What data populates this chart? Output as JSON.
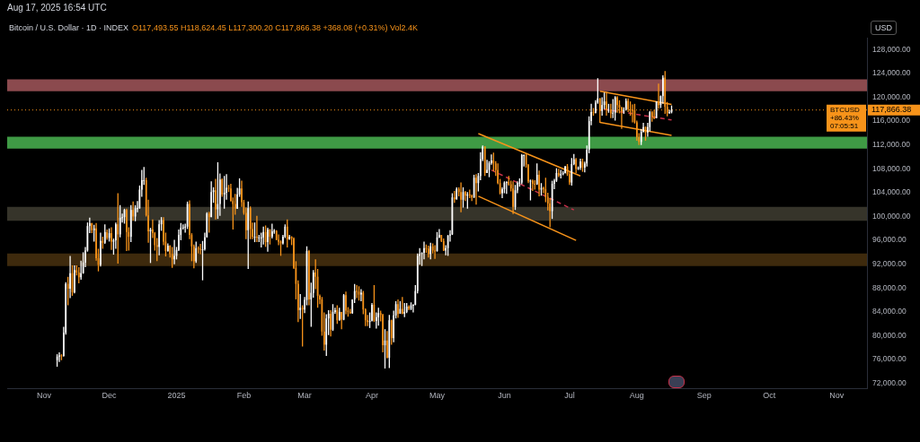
{
  "chart_data": {
    "type": "candlestick",
    "title": "Bitcoin / U.S. Dollar · 1D · INDEX",
    "subtitle": "O117,493.55 H118,624.45 L117,300.20 C117,866.38 +368.08 (+0.31%) Vol2.4K",
    "annotations": [
      "Aug 17, 2025 16:54 UTC",
      "BTCUSD",
      "+86.43%",
      "07:05:51",
      "USD"
    ],
    "xlim": [
      "2024-10-15",
      "2025-11-15"
    ],
    "xticks": [
      {
        "value": "2024-11-01",
        "label": "Nov"
      },
      {
        "value": "2024-12-01",
        "label": "Dec"
      },
      {
        "value": "2025-01-01",
        "label": "2025"
      },
      {
        "value": "2025-02-01",
        "label": "Feb"
      },
      {
        "value": "2025-03-01",
        "label": "Mar"
      },
      {
        "value": "2025-04-01",
        "label": "Apr"
      },
      {
        "value": "2025-05-01",
        "label": "May"
      },
      {
        "value": "2025-06-01",
        "label": "Jun"
      },
      {
        "value": "2025-07-01",
        "label": "Jul"
      },
      {
        "value": "2025-08-01",
        "label": "Aug"
      },
      {
        "value": "2025-09-01",
        "label": "Sep"
      },
      {
        "value": "2025-10-01",
        "label": "Oct"
      },
      {
        "value": "2025-11-01",
        "label": "Nov"
      }
    ],
    "ylim": [
      71200,
      130000
    ],
    "yticks": [
      {
        "value": 72000,
        "label": "72,000.00"
      },
      {
        "value": 76000,
        "label": "76,000.00"
      },
      {
        "value": 80000,
        "label": "80,000.00"
      },
      {
        "value": 84000,
        "label": "84,000.00"
      },
      {
        "value": 88000,
        "label": "88,000.00"
      },
      {
        "value": 92000,
        "label": "92,000.00"
      },
      {
        "value": 96000,
        "label": "96,000.00"
      },
      {
        "value": 100000,
        "label": "100,000.00"
      },
      {
        "value": 104000,
        "label": "104,000.00"
      },
      {
        "value": 108000,
        "label": "108,000.00"
      },
      {
        "value": 112000,
        "label": "112,000.00"
      },
      {
        "value": 116000,
        "label": "116,000.00"
      },
      {
        "value": 120000,
        "label": "120,000.00"
      },
      {
        "value": 124000,
        "label": "124,000.00"
      },
      {
        "value": 128000,
        "label": "128,000.00"
      }
    ],
    "bands": [
      {
        "axis": "y",
        "from": 121000,
        "to": 123000,
        "color": "#8b4a4e"
      },
      {
        "axis": "y",
        "from": 111400,
        "to": 113400,
        "color": "#3f9a45"
      },
      {
        "axis": "y",
        "from": 99300,
        "to": 101600,
        "color": "#36342a"
      },
      {
        "axis": "y",
        "from": 91700,
        "to": 93800,
        "color": "#3e2a0d"
      }
    ],
    "ref_lines": [
      {
        "axis": "y",
        "value": 117866.38,
        "label": "117,866.38",
        "color": "#f7931a",
        "line_style": "dotted"
      }
    ],
    "series": [
      {
        "type": "line",
        "x": [
          "2025-05-20",
          "2025-07-06"
        ],
        "values": [
          113900,
          106800
        ],
        "color": "#f7931a"
      },
      {
        "type": "line",
        "x": [
          "2025-05-20",
          "2025-07-04"
        ],
        "values": [
          103400,
          96000
        ],
        "color": "#f7931a"
      },
      {
        "type": "line",
        "x": [
          "2025-05-26",
          "2025-07-03"
        ],
        "values": [
          107800,
          101100
        ],
        "color": "#c8304a",
        "line_style": "dashed"
      },
      {
        "type": "line",
        "x": [
          "2025-07-15",
          "2025-08-17"
        ],
        "values": [
          121000,
          118800
        ],
        "color": "#f7931a"
      },
      {
        "type": "line",
        "x": [
          "2025-07-15",
          "2025-08-17"
        ],
        "values": [
          115800,
          113600
        ],
        "color": "#f7931a"
      },
      {
        "type": "line",
        "x": [
          "2025-07-17",
          "2025-08-17"
        ],
        "values": [
          118000,
          116200
        ],
        "color": "#c8304a",
        "line_style": "dashed"
      }
    ],
    "x": [
      "2024-11-07",
      "2024-11-08",
      "2024-11-09",
      "2024-11-10",
      "2024-11-11",
      "2024-11-12",
      "2024-11-13",
      "2024-11-14",
      "2024-11-15",
      "2024-11-16",
      "2024-11-17",
      "2024-11-18",
      "2024-11-19",
      "2024-11-20",
      "2024-11-21",
      "2024-11-22",
      "2024-11-23",
      "2024-11-24",
      "2024-11-25",
      "2024-11-26",
      "2024-11-27",
      "2024-11-28",
      "2024-11-29",
      "2024-11-30",
      "2024-12-01",
      "2024-12-02",
      "2024-12-03",
      "2024-12-04",
      "2024-12-05",
      "2024-12-06",
      "2024-12-07",
      "2024-12-08",
      "2024-12-09",
      "2024-12-10",
      "2024-12-11",
      "2024-12-12",
      "2024-12-13",
      "2024-12-14",
      "2024-12-15",
      "2024-12-16",
      "2024-12-17",
      "2024-12-18",
      "2024-12-19",
      "2024-12-20",
      "2024-12-21",
      "2024-12-22",
      "2024-12-23",
      "2024-12-24",
      "2024-12-25",
      "2024-12-26",
      "2024-12-27",
      "2024-12-28",
      "2024-12-29",
      "2024-12-30",
      "2024-12-31",
      "2025-01-01",
      "2025-01-02",
      "2025-01-03",
      "2025-01-04",
      "2025-01-05",
      "2025-01-06",
      "2025-01-07",
      "2025-01-08",
      "2025-01-09",
      "2025-01-10",
      "2025-01-11",
      "2025-01-12",
      "2025-01-13",
      "2025-01-14",
      "2025-01-15",
      "2025-01-16",
      "2025-01-17",
      "2025-01-18",
      "2025-01-19",
      "2025-01-20",
      "2025-01-21",
      "2025-01-22",
      "2025-01-23",
      "2025-01-24",
      "2025-01-25",
      "2025-01-26",
      "2025-01-27",
      "2025-01-28",
      "2025-01-29",
      "2025-01-30",
      "2025-01-31",
      "2025-02-01",
      "2025-02-02",
      "2025-02-03",
      "2025-02-04",
      "2025-02-05",
      "2025-02-06",
      "2025-02-07",
      "2025-02-08",
      "2025-02-09",
      "2025-02-10",
      "2025-02-11",
      "2025-02-12",
      "2025-02-13",
      "2025-02-14",
      "2025-02-15",
      "2025-02-16",
      "2025-02-17",
      "2025-02-18",
      "2025-02-19",
      "2025-02-20",
      "2025-02-21",
      "2025-02-22",
      "2025-02-23",
      "2025-02-24",
      "2025-02-25",
      "2025-02-26",
      "2025-02-27",
      "2025-02-28",
      "2025-03-01",
      "2025-03-02",
      "2025-03-03",
      "2025-03-04",
      "2025-03-05",
      "2025-03-06",
      "2025-03-07",
      "2025-03-08",
      "2025-03-09",
      "2025-03-10",
      "2025-03-11",
      "2025-03-12",
      "2025-03-13",
      "2025-03-14",
      "2025-03-15",
      "2025-03-16",
      "2025-03-17",
      "2025-03-18",
      "2025-03-19",
      "2025-03-20",
      "2025-03-21",
      "2025-03-22",
      "2025-03-23",
      "2025-03-24",
      "2025-03-25",
      "2025-03-26",
      "2025-03-27",
      "2025-03-28",
      "2025-03-29",
      "2025-03-30",
      "2025-03-31",
      "2025-04-01",
      "2025-04-02",
      "2025-04-03",
      "2025-04-04",
      "2025-04-05",
      "2025-04-06",
      "2025-04-07",
      "2025-04-08",
      "2025-04-09",
      "2025-04-10",
      "2025-04-11",
      "2025-04-12",
      "2025-04-13",
      "2025-04-14",
      "2025-04-15",
      "2025-04-16",
      "2025-04-17",
      "2025-04-18",
      "2025-04-19",
      "2025-04-20",
      "2025-04-21",
      "2025-04-22",
      "2025-04-23",
      "2025-04-24",
      "2025-04-25",
      "2025-04-26",
      "2025-04-27",
      "2025-04-28",
      "2025-04-29",
      "2025-04-30",
      "2025-05-01",
      "2025-05-02",
      "2025-05-03",
      "2025-05-04",
      "2025-05-05",
      "2025-05-06",
      "2025-05-07",
      "2025-05-08",
      "2025-05-09",
      "2025-05-10",
      "2025-05-11",
      "2025-05-12",
      "2025-05-13",
      "2025-05-14",
      "2025-05-15",
      "2025-05-16",
      "2025-05-17",
      "2025-05-18",
      "2025-05-19",
      "2025-05-20",
      "2025-05-21",
      "2025-05-22",
      "2025-05-23",
      "2025-05-24",
      "2025-05-25",
      "2025-05-26",
      "2025-05-27",
      "2025-05-28",
      "2025-05-29",
      "2025-05-30",
      "2025-05-31",
      "2025-06-01",
      "2025-06-02",
      "2025-06-03",
      "2025-06-04",
      "2025-06-05",
      "2025-06-06",
      "2025-06-07",
      "2025-06-08",
      "2025-06-09",
      "2025-06-10",
      "2025-06-11",
      "2025-06-12",
      "2025-06-13",
      "2025-06-14",
      "2025-06-15",
      "2025-06-16",
      "2025-06-17",
      "2025-06-18",
      "2025-06-19",
      "2025-06-20",
      "2025-06-21",
      "2025-06-22",
      "2025-06-23",
      "2025-06-24",
      "2025-06-25",
      "2025-06-26",
      "2025-06-27",
      "2025-06-28",
      "2025-06-29",
      "2025-06-30",
      "2025-07-01",
      "2025-07-02",
      "2025-07-03",
      "2025-07-04",
      "2025-07-05",
      "2025-07-06",
      "2025-07-07",
      "2025-07-08",
      "2025-07-09",
      "2025-07-10",
      "2025-07-11",
      "2025-07-12",
      "2025-07-13",
      "2025-07-14",
      "2025-07-15",
      "2025-07-16",
      "2025-07-17",
      "2025-07-18",
      "2025-07-19",
      "2025-07-20",
      "2025-07-21",
      "2025-07-22",
      "2025-07-23",
      "2025-07-24",
      "2025-07-25",
      "2025-07-26",
      "2025-07-27",
      "2025-07-28",
      "2025-07-29",
      "2025-07-30",
      "2025-07-31",
      "2025-08-01",
      "2025-08-02",
      "2025-08-03",
      "2025-08-04",
      "2025-08-05",
      "2025-08-06",
      "2025-08-07",
      "2025-08-08",
      "2025-08-09",
      "2025-08-10",
      "2025-08-11",
      "2025-08-12",
      "2025-08-13",
      "2025-08-14",
      "2025-08-15",
      "2025-08-16",
      "2025-08-17"
    ],
    "ohlc": [
      [
        75900,
        76900,
        74800,
        76500
      ],
      [
        76500,
        77200,
        75600,
        76700
      ],
      [
        76700,
        76900,
        75900,
        76600
      ],
      [
        76600,
        81500,
        76500,
        80500
      ],
      [
        80500,
        89000,
        80200,
        88700
      ],
      [
        88700,
        89900,
        85100,
        87900
      ],
      [
        87900,
        93400,
        86300,
        90500
      ],
      [
        90500,
        91800,
        86700,
        87300
      ],
      [
        87300,
        91800,
        87100,
        91000
      ],
      [
        91000,
        91800,
        90100,
        90600
      ],
      [
        90600,
        91500,
        88800,
        89800
      ],
      [
        89800,
        92600,
        89400,
        90500
      ],
      [
        90500,
        94000,
        90400,
        92300
      ],
      [
        92300,
        94900,
        91500,
        94300
      ],
      [
        94300,
        99000,
        94100,
        98400
      ],
      [
        98400,
        99800,
        97200,
        98900
      ],
      [
        98900,
        98900,
        97200,
        97700
      ],
      [
        97700,
        98600,
        95800,
        98000
      ],
      [
        98000,
        98900,
        92600,
        93000
      ],
      [
        93000,
        94600,
        90800,
        91900
      ],
      [
        91900,
        97300,
        91600,
        95900
      ],
      [
        95900,
        96600,
        94600,
        95600
      ],
      [
        95600,
        98700,
        95400,
        97400
      ],
      [
        97400,
        97800,
        96100,
        96400
      ],
      [
        96400,
        98000,
        95800,
        97200
      ],
      [
        97200,
        98200,
        94400,
        95800
      ],
      [
        95800,
        96300,
        93600,
        96000
      ],
      [
        96000,
        99000,
        94600,
        98700
      ],
      [
        98700,
        103900,
        92100,
        97000
      ],
      [
        97000,
        101900,
        96500,
        99800
      ],
      [
        99800,
        100500,
        99000,
        99900
      ],
      [
        99900,
        101300,
        98800,
        101100
      ],
      [
        101100,
        101300,
        94200,
        97400
      ],
      [
        97400,
        98200,
        94300,
        96600
      ],
      [
        96600,
        101900,
        95700,
        101100
      ],
      [
        101100,
        102500,
        99300,
        100000
      ],
      [
        100000,
        101900,
        99200,
        101400
      ],
      [
        101400,
        102600,
        100700,
        101400
      ],
      [
        101400,
        105200,
        101300,
        104500
      ],
      [
        104500,
        107800,
        103300,
        106100
      ],
      [
        106100,
        108300,
        105300,
        106100
      ],
      [
        106100,
        106500,
        100000,
        100200
      ],
      [
        100200,
        102800,
        95600,
        97500
      ],
      [
        97500,
        98100,
        92200,
        97800
      ],
      [
        97800,
        99500,
        96400,
        97200
      ],
      [
        97200,
        97400,
        94300,
        95200
      ],
      [
        95200,
        96400,
        92500,
        94900
      ],
      [
        94900,
        99400,
        93500,
        98700
      ],
      [
        98700,
        99900,
        97600,
        99400
      ],
      [
        99400,
        99900,
        95200,
        95800
      ],
      [
        95800,
        97300,
        93300,
        94200
      ],
      [
        94200,
        95500,
        94100,
        95100
      ],
      [
        95100,
        95200,
        93100,
        93700
      ],
      [
        93700,
        94900,
        91400,
        92800
      ],
      [
        92800,
        96100,
        92000,
        93400
      ],
      [
        93400,
        94900,
        92800,
        94400
      ],
      [
        94400,
        97800,
        94200,
        96900
      ],
      [
        96900,
        98900,
        96000,
        98100
      ],
      [
        98100,
        98700,
        97800,
        98200
      ],
      [
        98200,
        98800,
        97300,
        98300
      ],
      [
        98300,
        102500,
        97900,
        102100
      ],
      [
        102100,
        102700,
        96200,
        96900
      ],
      [
        96900,
        97200,
        92500,
        95000
      ],
      [
        95000,
        95300,
        91300,
        92500
      ],
      [
        92500,
        95800,
        92200,
        94700
      ],
      [
        94700,
        95000,
        93800,
        94600
      ],
      [
        94600,
        95400,
        93700,
        94500
      ],
      [
        94500,
        95900,
        89300,
        94500
      ],
      [
        94500,
        97300,
        94300,
        96500
      ],
      [
        96500,
        100700,
        96500,
        100500
      ],
      [
        100500,
        100800,
        97300,
        99900
      ],
      [
        99900,
        105900,
        99900,
        104100
      ],
      [
        104100,
        104900,
        102300,
        104400
      ],
      [
        104400,
        106300,
        99500,
        101200
      ],
      [
        101200,
        109100,
        99600,
        102100
      ],
      [
        102100,
        107200,
        100100,
        106200
      ],
      [
        106200,
        106400,
        103300,
        103700
      ],
      [
        103700,
        106800,
        101300,
        104000
      ],
      [
        104000,
        107100,
        102800,
        104800
      ],
      [
        104800,
        105300,
        104100,
        104700
      ],
      [
        104700,
        105500,
        102500,
        102600
      ],
      [
        102600,
        103200,
        97800,
        102100
      ],
      [
        102100,
        103800,
        100300,
        101300
      ],
      [
        101300,
        104800,
        101300,
        103700
      ],
      [
        103700,
        106400,
        103300,
        104700
      ],
      [
        104700,
        106000,
        101600,
        102400
      ],
      [
        102400,
        102800,
        100300,
        100600
      ],
      [
        100600,
        101500,
        96200,
        97700
      ],
      [
        97700,
        102500,
        91200,
        101400
      ],
      [
        101400,
        101700,
        96200,
        97900
      ],
      [
        97900,
        99000,
        96200,
        96600
      ],
      [
        96600,
        99000,
        95700,
        96600
      ],
      [
        96600,
        100100,
        95700,
        96500
      ],
      [
        96500,
        96900,
        95700,
        96500
      ],
      [
        96500,
        97300,
        94800,
        96500
      ],
      [
        96500,
        98300,
        95300,
        97400
      ],
      [
        97400,
        98500,
        94900,
        95700
      ],
      [
        95700,
        98100,
        94100,
        97800
      ],
      [
        97800,
        97900,
        95300,
        96600
      ],
      [
        96600,
        98800,
        96300,
        97500
      ],
      [
        97500,
        97900,
        97100,
        97600
      ],
      [
        97600,
        97700,
        96000,
        96100
      ],
      [
        96100,
        97000,
        95200,
        95800
      ],
      [
        95800,
        96000,
        93400,
        95500
      ],
      [
        95500,
        96900,
        95300,
        96600
      ],
      [
        96600,
        98700,
        96400,
        98300
      ],
      [
        98300,
        99500,
        94800,
        96200
      ],
      [
        96200,
        96900,
        96100,
        96600
      ],
      [
        96600,
        96700,
        95200,
        96300
      ],
      [
        96300,
        96500,
        91200,
        91400
      ],
      [
        91400,
        92500,
        86100,
        88700
      ],
      [
        88700,
        89300,
        82300,
        84300
      ],
      [
        84300,
        87000,
        82800,
        84700
      ],
      [
        84700,
        85100,
        78200,
        84400
      ],
      [
        84400,
        86500,
        83800,
        86000
      ],
      [
        86000,
        95000,
        85100,
        94200
      ],
      [
        94200,
        94400,
        85100,
        86100
      ],
      [
        86100,
        88900,
        81500,
        87200
      ],
      [
        87200,
        91000,
        86400,
        90600
      ],
      [
        90600,
        92800,
        87800,
        89900
      ],
      [
        89900,
        91200,
        84700,
        86700
      ],
      [
        86700,
        86900,
        85300,
        86100
      ],
      [
        86100,
        86500,
        80000,
        80700
      ],
      [
        80700,
        83900,
        77500,
        78500
      ],
      [
        78500,
        83600,
        76600,
        82900
      ],
      [
        82900,
        84300,
        80100,
        83700
      ],
      [
        83700,
        84300,
        79900,
        81000
      ],
      [
        81000,
        85300,
        80800,
        84000
      ],
      [
        84000,
        84700,
        83700,
        84300
      ],
      [
        84300,
        85100,
        82000,
        82600
      ],
      [
        82600,
        84700,
        82500,
        84000
      ],
      [
        84000,
        84000,
        81100,
        82700
      ],
      [
        82700,
        87000,
        82600,
        86800
      ],
      [
        86800,
        87400,
        83600,
        84200
      ],
      [
        84200,
        84800,
        83200,
        84000
      ],
      [
        84000,
        84500,
        83700,
        83800
      ],
      [
        83800,
        86100,
        83700,
        86100
      ],
      [
        86100,
        88700,
        85500,
        87500
      ],
      [
        87500,
        88500,
        86300,
        87400
      ],
      [
        87400,
        88300,
        85900,
        86900
      ],
      [
        86900,
        87800,
        85800,
        87200
      ],
      [
        87200,
        87500,
        83600,
        84400
      ],
      [
        84400,
        84600,
        81600,
        82600
      ],
      [
        82600,
        83500,
        81600,
        82300
      ],
      [
        82300,
        83900,
        81300,
        82500
      ],
      [
        82500,
        85500,
        82400,
        85200
      ],
      [
        85200,
        88500,
        82300,
        82500
      ],
      [
        82500,
        83900,
        81200,
        83100
      ],
      [
        83100,
        84700,
        81700,
        83800
      ],
      [
        83800,
        84200,
        82400,
        83500
      ],
      [
        83500,
        83700,
        77200,
        78400
      ],
      [
        78400,
        81100,
        74500,
        79200
      ],
      [
        79200,
        80800,
        76200,
        76300
      ],
      [
        76300,
        83500,
        74600,
        82600
      ],
      [
        82600,
        82700,
        78500,
        79600
      ],
      [
        79600,
        84200,
        78900,
        83400
      ],
      [
        83400,
        85800,
        82900,
        85300
      ],
      [
        85300,
        86100,
        83000,
        83700
      ],
      [
        83700,
        85800,
        83700,
        84500
      ],
      [
        84500,
        86500,
        83600,
        83700
      ],
      [
        83700,
        85500,
        83100,
        84000
      ],
      [
        84000,
        85500,
        83800,
        84900
      ],
      [
        84900,
        85100,
        84300,
        84500
      ],
      [
        84500,
        85600,
        84300,
        85100
      ],
      [
        85100,
        85300,
        83900,
        85200
      ],
      [
        85200,
        88500,
        85100,
        87500
      ],
      [
        87500,
        93800,
        87100,
        93400
      ],
      [
        93400,
        94700,
        91900,
        93700
      ],
      [
        93700,
        94000,
        91700,
        93900
      ],
      [
        93900,
        95800,
        92800,
        94700
      ],
      [
        94700,
        95300,
        93900,
        94600
      ],
      [
        94600,
        95100,
        93100,
        93700
      ],
      [
        93700,
        95600,
        92800,
        95000
      ],
      [
        95000,
        95500,
        93800,
        94300
      ],
      [
        94300,
        95200,
        92900,
        94200
      ],
      [
        94200,
        97400,
        94100,
        96500
      ],
      [
        96500,
        97900,
        96400,
        96900
      ],
      [
        96900,
        96900,
        95700,
        95900
      ],
      [
        95900,
        96300,
        94200,
        94300
      ],
      [
        94300,
        95200,
        93500,
        94700
      ],
      [
        94700,
        96900,
        93400,
        96800
      ],
      [
        96800,
        97700,
        95800,
        97000
      ],
      [
        97000,
        103900,
        96900,
        103200
      ],
      [
        103200,
        104300,
        102300,
        102900
      ],
      [
        102900,
        104900,
        102800,
        104600
      ],
      [
        104600,
        104900,
        103400,
        104100
      ],
      [
        104100,
        105700,
        100700,
        102800
      ],
      [
        102800,
        104900,
        101500,
        104100
      ],
      [
        104100,
        104300,
        102600,
        103500
      ],
      [
        103500,
        104100,
        101300,
        103700
      ],
      [
        103700,
        104500,
        103100,
        103500
      ],
      [
        103500,
        103700,
        102600,
        103200
      ],
      [
        103200,
        107000,
        103100,
        106500
      ],
      [
        106500,
        107100,
        102000,
        105600
      ],
      [
        105600,
        107300,
        104200,
        106800
      ],
      [
        106800,
        110800,
        106100,
        109600
      ],
      [
        109600,
        111900,
        109300,
        111700
      ],
      [
        111700,
        111800,
        106800,
        107300
      ],
      [
        107300,
        109500,
        107300,
        107800
      ],
      [
        107800,
        109300,
        106600,
        109000
      ],
      [
        109000,
        110400,
        108700,
        109400
      ],
      [
        109400,
        110700,
        107600,
        108900
      ],
      [
        108900,
        109300,
        106800,
        107800
      ],
      [
        107800,
        108900,
        105400,
        105600
      ],
      [
        105600,
        106300,
        103700,
        103900
      ],
      [
        103900,
        104900,
        103100,
        104600
      ],
      [
        104600,
        105900,
        103900,
        105700
      ],
      [
        105700,
        105900,
        103800,
        105800
      ],
      [
        105800,
        106800,
        105200,
        105400
      ],
      [
        105400,
        106000,
        104200,
        104700
      ],
      [
        104700,
        105900,
        100400,
        101600
      ],
      [
        101600,
        105300,
        101100,
        104400
      ],
      [
        104400,
        105900,
        103900,
        105600
      ],
      [
        105600,
        106400,
        105000,
        105700
      ],
      [
        105700,
        110500,
        105400,
        110300
      ],
      [
        110300,
        110400,
        108400,
        110300
      ],
      [
        110300,
        110600,
        108200,
        108700
      ],
      [
        108700,
        108800,
        105600,
        105900
      ],
      [
        105900,
        106200,
        102700,
        106000
      ],
      [
        106000,
        106200,
        104300,
        105500
      ],
      [
        105500,
        106100,
        104500,
        105400
      ],
      [
        105400,
        108900,
        105300,
        107000
      ],
      [
        107000,
        107700,
        103400,
        104500
      ],
      [
        104500,
        105600,
        103500,
        104800
      ],
      [
        104800,
        105000,
        103900,
        104600
      ],
      [
        104600,
        106500,
        102400,
        103300
      ],
      [
        103300,
        104000,
        101000,
        102200
      ],
      [
        102200,
        103100,
        98200,
        100900
      ],
      [
        100900,
        106000,
        99600,
        105500
      ],
      [
        105500,
        106300,
        104600,
        106000
      ],
      [
        106000,
        108100,
        105800,
        107300
      ],
      [
        107300,
        108000,
        106600,
        106900
      ],
      [
        106900,
        107800,
        106400,
        107100
      ],
      [
        107100,
        107600,
        106900,
        107300
      ],
      [
        107300,
        108500,
        107200,
        108400
      ],
      [
        108400,
        108800,
        106800,
        107100
      ],
      [
        107100,
        107500,
        105300,
        105700
      ],
      [
        105700,
        109800,
        105200,
        108800
      ],
      [
        108800,
        110500,
        108600,
        109600
      ],
      [
        109600,
        109800,
        107300,
        108000
      ],
      [
        108000,
        108400,
        107800,
        108200
      ],
      [
        108200,
        109700,
        107800,
        109200
      ],
      [
        109200,
        109700,
        107500,
        108200
      ],
      [
        108200,
        109200,
        107400,
        108900
      ],
      [
        108900,
        111900,
        108400,
        111200
      ],
      [
        111200,
        116800,
        110600,
        116000
      ],
      [
        116000,
        118900,
        115300,
        117500
      ],
      [
        117500,
        118200,
        116900,
        117400
      ],
      [
        117400,
        119500,
        117300,
        119100
      ],
      [
        119100,
        123200,
        118900,
        119800
      ],
      [
        119800,
        119900,
        115700,
        117700
      ],
      [
        117700,
        120000,
        116900,
        118700
      ],
      [
        118700,
        120800,
        118000,
        119300
      ],
      [
        119300,
        120900,
        116900,
        117900
      ],
      [
        117900,
        118900,
        117400,
        117900
      ],
      [
        117900,
        118900,
        116500,
        117300
      ],
      [
        117300,
        119700,
        116500,
        117400
      ],
      [
        117400,
        120200,
        116100,
        120000
      ],
      [
        120000,
        120200,
        117400,
        118700
      ],
      [
        118700,
        119500,
        117300,
        118300
      ],
      [
        118300,
        118400,
        114700,
        117600
      ],
      [
        117600,
        118300,
        117200,
        117900
      ],
      [
        117900,
        119800,
        117800,
        119400
      ],
      [
        119400,
        119800,
        117500,
        118000
      ],
      [
        118000,
        119300,
        116900,
        117900
      ],
      [
        117900,
        118800,
        115800,
        117800
      ],
      [
        117800,
        118900,
        115600,
        115800
      ],
      [
        115800,
        116100,
        112700,
        113300
      ],
      [
        113300,
        114000,
        112000,
        112500
      ],
      [
        112500,
        114700,
        112000,
        114200
      ],
      [
        114200,
        115700,
        114100,
        115000
      ],
      [
        115000,
        115100,
        112700,
        114100
      ],
      [
        114100,
        115700,
        113400,
        115000
      ],
      [
        115000,
        117700,
        114300,
        117500
      ],
      [
        117500,
        117700,
        115900,
        116700
      ],
      [
        116700,
        117900,
        116300,
        116500
      ],
      [
        116500,
        119300,
        116500,
        119300
      ],
      [
        119300,
        122300,
        118100,
        118700
      ],
      [
        118700,
        120300,
        118200,
        120200
      ],
      [
        120200,
        123700,
        118900,
        123300
      ],
      [
        123300,
        124400,
        117200,
        118400
      ],
      [
        118400,
        119200,
        116800,
        117400
      ],
      [
        117400,
        117900,
        117200,
        117500
      ],
      [
        117493.55,
        118624.45,
        117300.2,
        117866.38
      ]
    ],
    "colors": [
      "#ffffff",
      "#ffffff",
      "#f7931a",
      "#ffffff",
      "#ffffff",
      "#f7931a",
      "#ffffff",
      "#f7931a",
      "#ffffff",
      "#f7931a",
      "#f7931a",
      "#ffffff",
      "#ffffff",
      "#ffffff",
      "#ffffff",
      "#ffffff",
      "#f7931a",
      "#ffffff",
      "#f7931a",
      "#f7931a",
      "#ffffff",
      "#f7931a",
      "#ffffff",
      "#f7931a",
      "#ffffff",
      "#f7931a",
      "#ffffff",
      "#ffffff",
      "#f7931a",
      "#ffffff",
      "#ffffff",
      "#ffffff",
      "#f7931a",
      "#f7931a",
      "#ffffff",
      "#f7931a",
      "#ffffff",
      "#ffffff",
      "#ffffff",
      "#ffffff",
      "#ffffff",
      "#f7931a",
      "#f7931a",
      "#ffffff",
      "#f7931a",
      "#f7931a",
      "#f7931a",
      "#ffffff",
      "#ffffff",
      "#f7931a",
      "#f7931a",
      "#ffffff",
      "#f7931a",
      "#f7931a",
      "#ffffff",
      "#ffffff",
      "#ffffff",
      "#ffffff",
      "#ffffff",
      "#ffffff",
      "#ffffff",
      "#f7931a",
      "#f7931a",
      "#f7931a",
      "#ffffff",
      "#f7931a",
      "#f7931a",
      "#ffffff",
      "#ffffff",
      "#ffffff",
      "#f7931a",
      "#ffffff",
      "#ffffff",
      "#f7931a",
      "#ffffff",
      "#ffffff",
      "#f7931a",
      "#ffffff",
      "#ffffff",
      "#f7931a",
      "#f7931a",
      "#f7931a",
      "#f7931a",
      "#ffffff",
      "#ffffff",
      "#f7931a",
      "#f7931a",
      "#f7931a",
      "#ffffff",
      "#f7931a",
      "#f7931a",
      "#ffffff",
      "#f7931a",
      "#ffffff",
      "#ffffff",
      "#ffffff",
      "#f7931a",
      "#ffffff",
      "#f7931a",
      "#ffffff",
      "#ffffff",
      "#f7931a",
      "#f7931a",
      "#f7931a",
      "#ffffff",
      "#ffffff",
      "#f7931a",
      "#ffffff",
      "#f7931a",
      "#f7931a",
      "#f7931a",
      "#f7931a",
      "#ffffff",
      "#f7931a",
      "#ffffff",
      "#ffffff",
      "#f7931a",
      "#ffffff",
      "#ffffff",
      "#f7931a",
      "#f7931a",
      "#f7931a",
      "#f7931a",
      "#f7931a",
      "#ffffff",
      "#ffffff",
      "#f7931a",
      "#ffffff",
      "#ffffff",
      "#f7931a",
      "#ffffff",
      "#f7931a",
      "#ffffff",
      "#f7931a",
      "#f7931a",
      "#f7931a",
      "#ffffff",
      "#ffffff",
      "#f7931a",
      "#f7931a",
      "#ffffff",
      "#f7931a",
      "#f7931a",
      "#f7931a",
      "#ffffff",
      "#ffffff",
      "#f7931a",
      "#ffffff",
      "#ffffff",
      "#f7931a",
      "#f7931a",
      "#ffffff",
      "#f7931a",
      "#ffffff",
      "#f7931a",
      "#ffffff",
      "#ffffff",
      "#f7931a",
      "#ffffff",
      "#f7931a",
      "#ffffff",
      "#ffffff",
      "#f7931a",
      "#ffffff",
      "#ffffff",
      "#ffffff",
      "#ffffff",
      "#ffffff",
      "#ffffff",
      "#ffffff",
      "#f7931a",
      "#f7931a",
      "#ffffff",
      "#f7931a",
      "#f7931a",
      "#ffffff",
      "#ffffff",
      "#f7931a",
      "#f7931a",
      "#ffffff",
      "#ffffff",
      "#ffffff",
      "#ffffff",
      "#f7931a",
      "#ffffff",
      "#f7931a",
      "#f7931a",
      "#ffffff",
      "#f7931a",
      "#ffffff",
      "#f7931a",
      "#f7931a",
      "#ffffff",
      "#f7931a",
      "#ffffff",
      "#ffffff",
      "#ffffff",
      "#f7931a",
      "#ffffff",
      "#ffffff",
      "#ffffff",
      "#f7931a",
      "#f7931a",
      "#f7931a",
      "#f7931a",
      "#ffffff",
      "#ffffff",
      "#ffffff",
      "#f7931a",
      "#f7931a",
      "#f7931a",
      "#ffffff",
      "#ffffff",
      "#ffffff",
      "#ffffff",
      "#ffffff",
      "#f7931a",
      "#f7931a",
      "#ffffff",
      "#f7931a",
      "#f7931a",
      "#ffffff",
      "#f7931a",
      "#ffffff",
      "#f7931a",
      "#f7931a",
      "#f7931a",
      "#f7931a",
      "#ffffff",
      "#ffffff",
      "#ffffff",
      "#f7931a",
      "#ffffff",
      "#ffffff",
      "#ffffff",
      "#f7931a",
      "#f7931a",
      "#ffffff",
      "#ffffff",
      "#f7931a",
      "#ffffff",
      "#ffffff",
      "#f7931a",
      "#ffffff",
      "#ffffff",
      "#ffffff",
      "#ffffff",
      "#f7931a",
      "#ffffff",
      "#ffffff",
      "#f7931a",
      "#ffffff",
      "#ffffff",
      "#f7931a",
      "#ffffff",
      "#f7931a",
      "#ffffff",
      "#ffffff",
      "#f7931a",
      "#f7931a",
      "#f7931a",
      "#ffffff",
      "#ffffff",
      "#f7931a",
      "#f7931a",
      "#f7931a",
      "#f7931a",
      "#f7931a",
      "#f7931a",
      "#ffffff",
      "#ffffff",
      "#f7931a",
      "#ffffff",
      "#ffffff",
      "#f7931a",
      "#f7931a",
      "#ffffff",
      "#f7931a",
      "#ffffff",
      "#ffffff",
      "#f7931a",
      "#f7931a",
      "#ffffff",
      "#ffffff"
    ]
  }
}
